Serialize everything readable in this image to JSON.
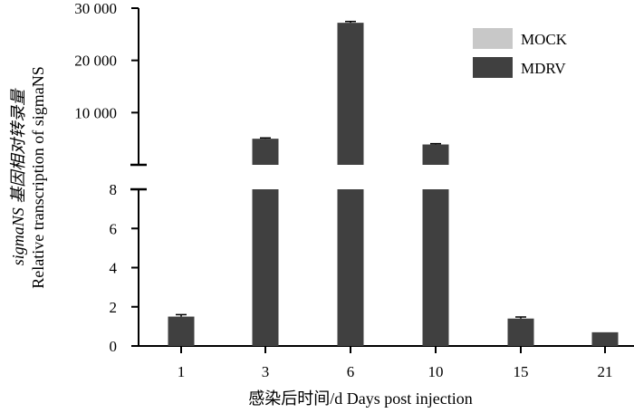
{
  "chart_data": {
    "type": "bar",
    "title": "",
    "xlabel": "感染后时间/d Days post injection",
    "ylabel_lines": [
      "sigmaNS 基因相对转录量",
      "Relative transcription of sigmaNS"
    ],
    "categories": [
      "1",
      "3",
      "6",
      "10",
      "15",
      "21"
    ],
    "y_axis_break": true,
    "ylim_lower": [
      0,
      8
    ],
    "ylim_upper": [
      0,
      30000
    ],
    "yticks_lower": [
      "0",
      "2",
      "4",
      "6",
      "8"
    ],
    "yticks_upper": [
      "10 000",
      "20 000",
      "30 000"
    ],
    "series": [
      {
        "name": "MOCK",
        "color": "#c8c8c8",
        "values": [
          0,
          0,
          0,
          0,
          0,
          0
        ],
        "errors": [
          0,
          0,
          0,
          0,
          0,
          0
        ]
      },
      {
        "name": "MDRV",
        "color": "#404040",
        "values": [
          1.5,
          5000,
          27200,
          3900,
          1.4,
          0.7
        ],
        "errors": [
          0.1,
          150,
          250,
          150,
          0.08,
          0
        ]
      }
    ],
    "legend": "top-right",
    "grid": false
  }
}
